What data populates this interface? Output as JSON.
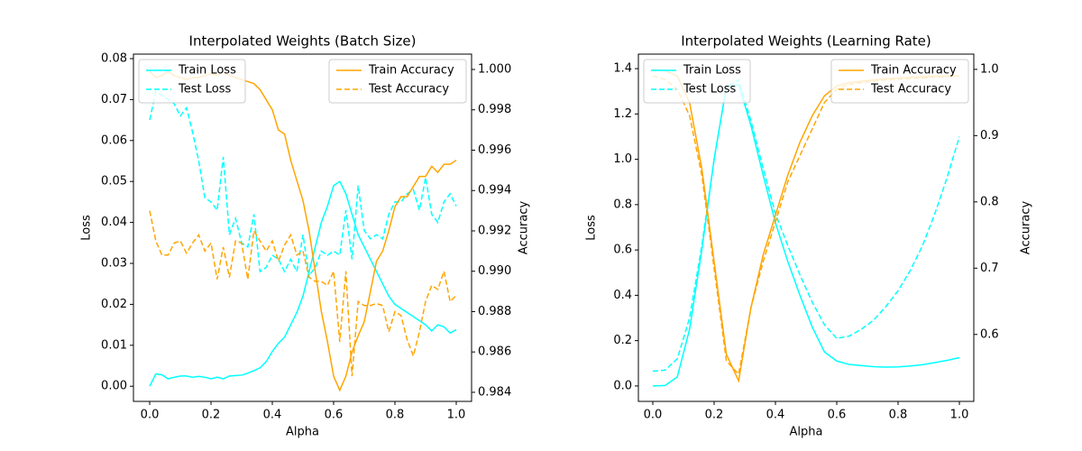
{
  "chart_data": [
    {
      "type": "line",
      "title": "Interpolated Weights (Batch Size)",
      "xlabel": "Alpha",
      "ylabel": "Loss",
      "y2label": "Accuracy",
      "x": [
        0,
        0.02,
        0.04,
        0.06,
        0.08,
        0.1,
        0.12,
        0.14,
        0.16,
        0.18,
        0.2,
        0.22,
        0.24,
        0.26,
        0.28,
        0.3,
        0.32,
        0.34,
        0.36,
        0.38,
        0.4,
        0.42,
        0.44,
        0.46,
        0.48,
        0.5,
        0.52,
        0.54,
        0.56,
        0.58,
        0.6,
        0.62,
        0.64,
        0.66,
        0.68,
        0.7,
        0.72,
        0.74,
        0.76,
        0.78,
        0.8,
        0.82,
        0.84,
        0.86,
        0.88,
        0.9,
        0.92,
        0.94,
        0.96,
        0.98,
        1.0
      ],
      "series": [
        {
          "name": "Train Loss",
          "color": "#00ffff",
          "linestyle": "solid",
          "axis": "y",
          "values": [
            0,
            0.003,
            0.0028,
            0.0018,
            0.0022,
            0.0025,
            0.0025,
            0.0022,
            0.0024,
            0.0022,
            0.0018,
            0.0022,
            0.0018,
            0.0025,
            0.0026,
            0.0027,
            0.0032,
            0.0038,
            0.0045,
            0.006,
            0.0085,
            0.0105,
            0.012,
            0.015,
            0.018,
            0.022,
            0.028,
            0.034,
            0.04,
            0.044,
            0.049,
            0.05,
            0.047,
            0.042,
            0.037,
            0.034,
            0.031,
            0.028,
            0.025,
            0.022,
            0.02,
            0.019,
            0.018,
            0.017,
            0.016,
            0.015,
            0.0135,
            0.015,
            0.0145,
            0.013,
            0.0138
          ]
        },
        {
          "name": "Test Loss",
          "color": "#00ffff",
          "linestyle": "dashed",
          "axis": "y",
          "values": [
            0.065,
            0.072,
            0.071,
            0.07,
            0.069,
            0.066,
            0.068,
            0.062,
            0.055,
            0.046,
            0.045,
            0.043,
            0.056,
            0.037,
            0.041,
            0.035,
            0.034,
            0.042,
            0.028,
            0.029,
            0.032,
            0.031,
            0.028,
            0.031,
            0.028,
            0.037,
            0.027,
            0.029,
            0.033,
            0.032,
            0.033,
            0.032,
            0.043,
            0.031,
            0.049,
            0.038,
            0.036,
            0.037,
            0.036,
            0.042,
            0.045,
            0.045,
            0.047,
            0.048,
            0.043,
            0.051,
            0.042,
            0.04,
            0.045,
            0.047,
            0.044
          ]
        },
        {
          "name": "Train Accuracy",
          "color": "#ffa500",
          "linestyle": "solid",
          "axis": "y2",
          "values": [
            0.9999,
            0.9996,
            0.9997,
            0.9999,
            0.9997,
            0.9996,
            0.9995,
            0.9996,
            0.9996,
            0.9997,
            0.9998,
            0.9997,
            0.9999,
            0.9997,
            0.9996,
            0.9995,
            0.9994,
            0.9993,
            0.999,
            0.9985,
            0.998,
            0.997,
            0.9968,
            0.9955,
            0.9945,
            0.9935,
            0.992,
            0.99,
            0.988,
            0.9865,
            0.9848,
            0.9841,
            0.9848,
            0.986,
            0.9868,
            0.9875,
            0.989,
            0.9905,
            0.991,
            0.992,
            0.9932,
            0.9937,
            0.9937,
            0.9942,
            0.9947,
            0.9947,
            0.9952,
            0.9949,
            0.9953,
            0.9953,
            0.9955
          ]
        },
        {
          "name": "Test Accuracy",
          "color": "#ffa500",
          "linestyle": "dashed",
          "axis": "y2",
          "values": [
            0.993,
            0.9915,
            0.9908,
            0.9908,
            0.9914,
            0.9915,
            0.9909,
            0.9914,
            0.9918,
            0.991,
            0.9914,
            0.9896,
            0.9912,
            0.9897,
            0.9915,
            0.9914,
            0.9896,
            0.992,
            0.9915,
            0.991,
            0.9915,
            0.9905,
            0.9913,
            0.9918,
            0.9908,
            0.991,
            0.9897,
            0.9895,
            0.9895,
            0.9893,
            0.99,
            0.9865,
            0.99,
            0.9848,
            0.9885,
            0.9883,
            0.9883,
            0.9884,
            0.9883,
            0.987,
            0.988,
            0.9878,
            0.9866,
            0.9858,
            0.987,
            0.9885,
            0.9893,
            0.9891,
            0.99,
            0.9885,
            0.9888
          ]
        }
      ],
      "xlim": [
        -0.053,
        1.05
      ],
      "xticks": [
        {
          "value": 0,
          "label": "0.0"
        },
        0.2,
        0.4,
        0.6,
        0.8,
        {
          "value": 1,
          "label": "1.0"
        }
      ],
      "ylim": [
        -0.0037,
        0.0811
      ],
      "yticks": [
        {
          "value": 0,
          "label": "0.00"
        },
        {
          "value": 0.01,
          "label": "0.01"
        },
        {
          "value": 0.02,
          "label": "0.02"
        },
        {
          "value": 0.03,
          "label": "0.03"
        },
        {
          "value": 0.04,
          "label": "0.04"
        },
        {
          "value": 0.05,
          "label": "0.05"
        },
        {
          "value": 0.06,
          "label": "0.06"
        },
        {
          "value": 0.07,
          "label": "0.07"
        },
        {
          "value": 0.08,
          "label": "0.08"
        }
      ],
      "y2lim": [
        0.98355,
        1.00076
      ],
      "y2ticks": [
        0.984,
        0.986,
        0.988,
        {
          "value": 0.99,
          "label": "0.990"
        },
        0.992,
        0.994,
        0.996,
        0.998,
        {
          "value": 1,
          "label": "1.000"
        }
      ],
      "legend_loc": "upper left",
      "legend2_loc": "upper right"
    },
    {
      "type": "line",
      "title": "Interpolated Weights (Learning Rate)",
      "xlabel": "Alpha",
      "ylabel": "Loss",
      "y2label": "Accuracy",
      "x": [
        0,
        0.04,
        0.08,
        0.12,
        0.16,
        0.2,
        0.24,
        0.28,
        0.32,
        0.36,
        0.4,
        0.44,
        0.48,
        0.52,
        0.56,
        0.6,
        0.64,
        0.68,
        0.72,
        0.76,
        0.8,
        0.84,
        0.88,
        0.92,
        0.96,
        1.0
      ],
      "series": [
        {
          "name": "Train Loss",
          "color": "#00ffff",
          "linestyle": "solid",
          "axis": "y",
          "values": [
            0,
            0.002,
            0.04,
            0.25,
            0.6,
            1.0,
            1.32,
            1.33,
            1.15,
            0.93,
            0.72,
            0.55,
            0.4,
            0.26,
            0.15,
            0.11,
            0.095,
            0.09,
            0.085,
            0.083,
            0.084,
            0.088,
            0.094,
            0.103,
            0.113,
            0.125
          ]
        },
        {
          "name": "Test Loss",
          "color": "#00ffff",
          "linestyle": "dashed",
          "axis": "y",
          "values": [
            0.065,
            0.07,
            0.12,
            0.3,
            0.62,
            1.0,
            1.32,
            1.35,
            1.17,
            0.96,
            0.76,
            0.62,
            0.49,
            0.37,
            0.27,
            0.21,
            0.22,
            0.25,
            0.29,
            0.35,
            0.42,
            0.51,
            0.62,
            0.76,
            0.92,
            1.1
          ]
        },
        {
          "name": "Train Accuracy",
          "color": "#ffa500",
          "linestyle": "solid",
          "axis": "y2",
          "values": [
            1.0,
            0.998,
            0.99,
            0.95,
            0.85,
            0.71,
            0.57,
            0.53,
            0.64,
            0.72,
            0.78,
            0.84,
            0.89,
            0.93,
            0.96,
            0.975,
            0.98,
            0.982,
            0.984,
            0.986,
            0.987,
            0.988,
            0.989,
            0.99,
            0.99,
            0.99
          ]
        },
        {
          "name": "Test Accuracy",
          "color": "#ffa500",
          "linestyle": "dashed",
          "axis": "y2",
          "values": [
            0.99,
            0.985,
            0.97,
            0.93,
            0.84,
            0.7,
            0.56,
            0.54,
            0.64,
            0.71,
            0.77,
            0.83,
            0.87,
            0.91,
            0.95,
            0.97,
            0.977,
            0.98,
            0.982,
            0.984,
            0.985,
            0.986,
            0.987,
            0.988,
            0.989,
            0.99
          ]
        }
      ],
      "xlim": [
        -0.047,
        1.047
      ],
      "xticks": [
        {
          "value": 0,
          "label": "0.0"
        },
        0.2,
        0.4,
        0.6,
        0.8,
        {
          "value": 1,
          "label": "1.0"
        }
      ],
      "ylim": [
        -0.068,
        1.464
      ],
      "yticks": [
        {
          "value": 0,
          "label": "0.0"
        },
        0.2,
        0.4,
        0.6,
        0.8,
        {
          "value": 1,
          "label": "1.0"
        },
        1.2,
        1.4
      ],
      "y2lim": [
        0.499,
        1.023
      ],
      "y2ticks": [
        0.6,
        0.7,
        0.8,
        0.9,
        {
          "value": 1,
          "label": "1.0"
        }
      ],
      "legend_loc": "upper left",
      "legend2_loc": "upper right"
    }
  ]
}
